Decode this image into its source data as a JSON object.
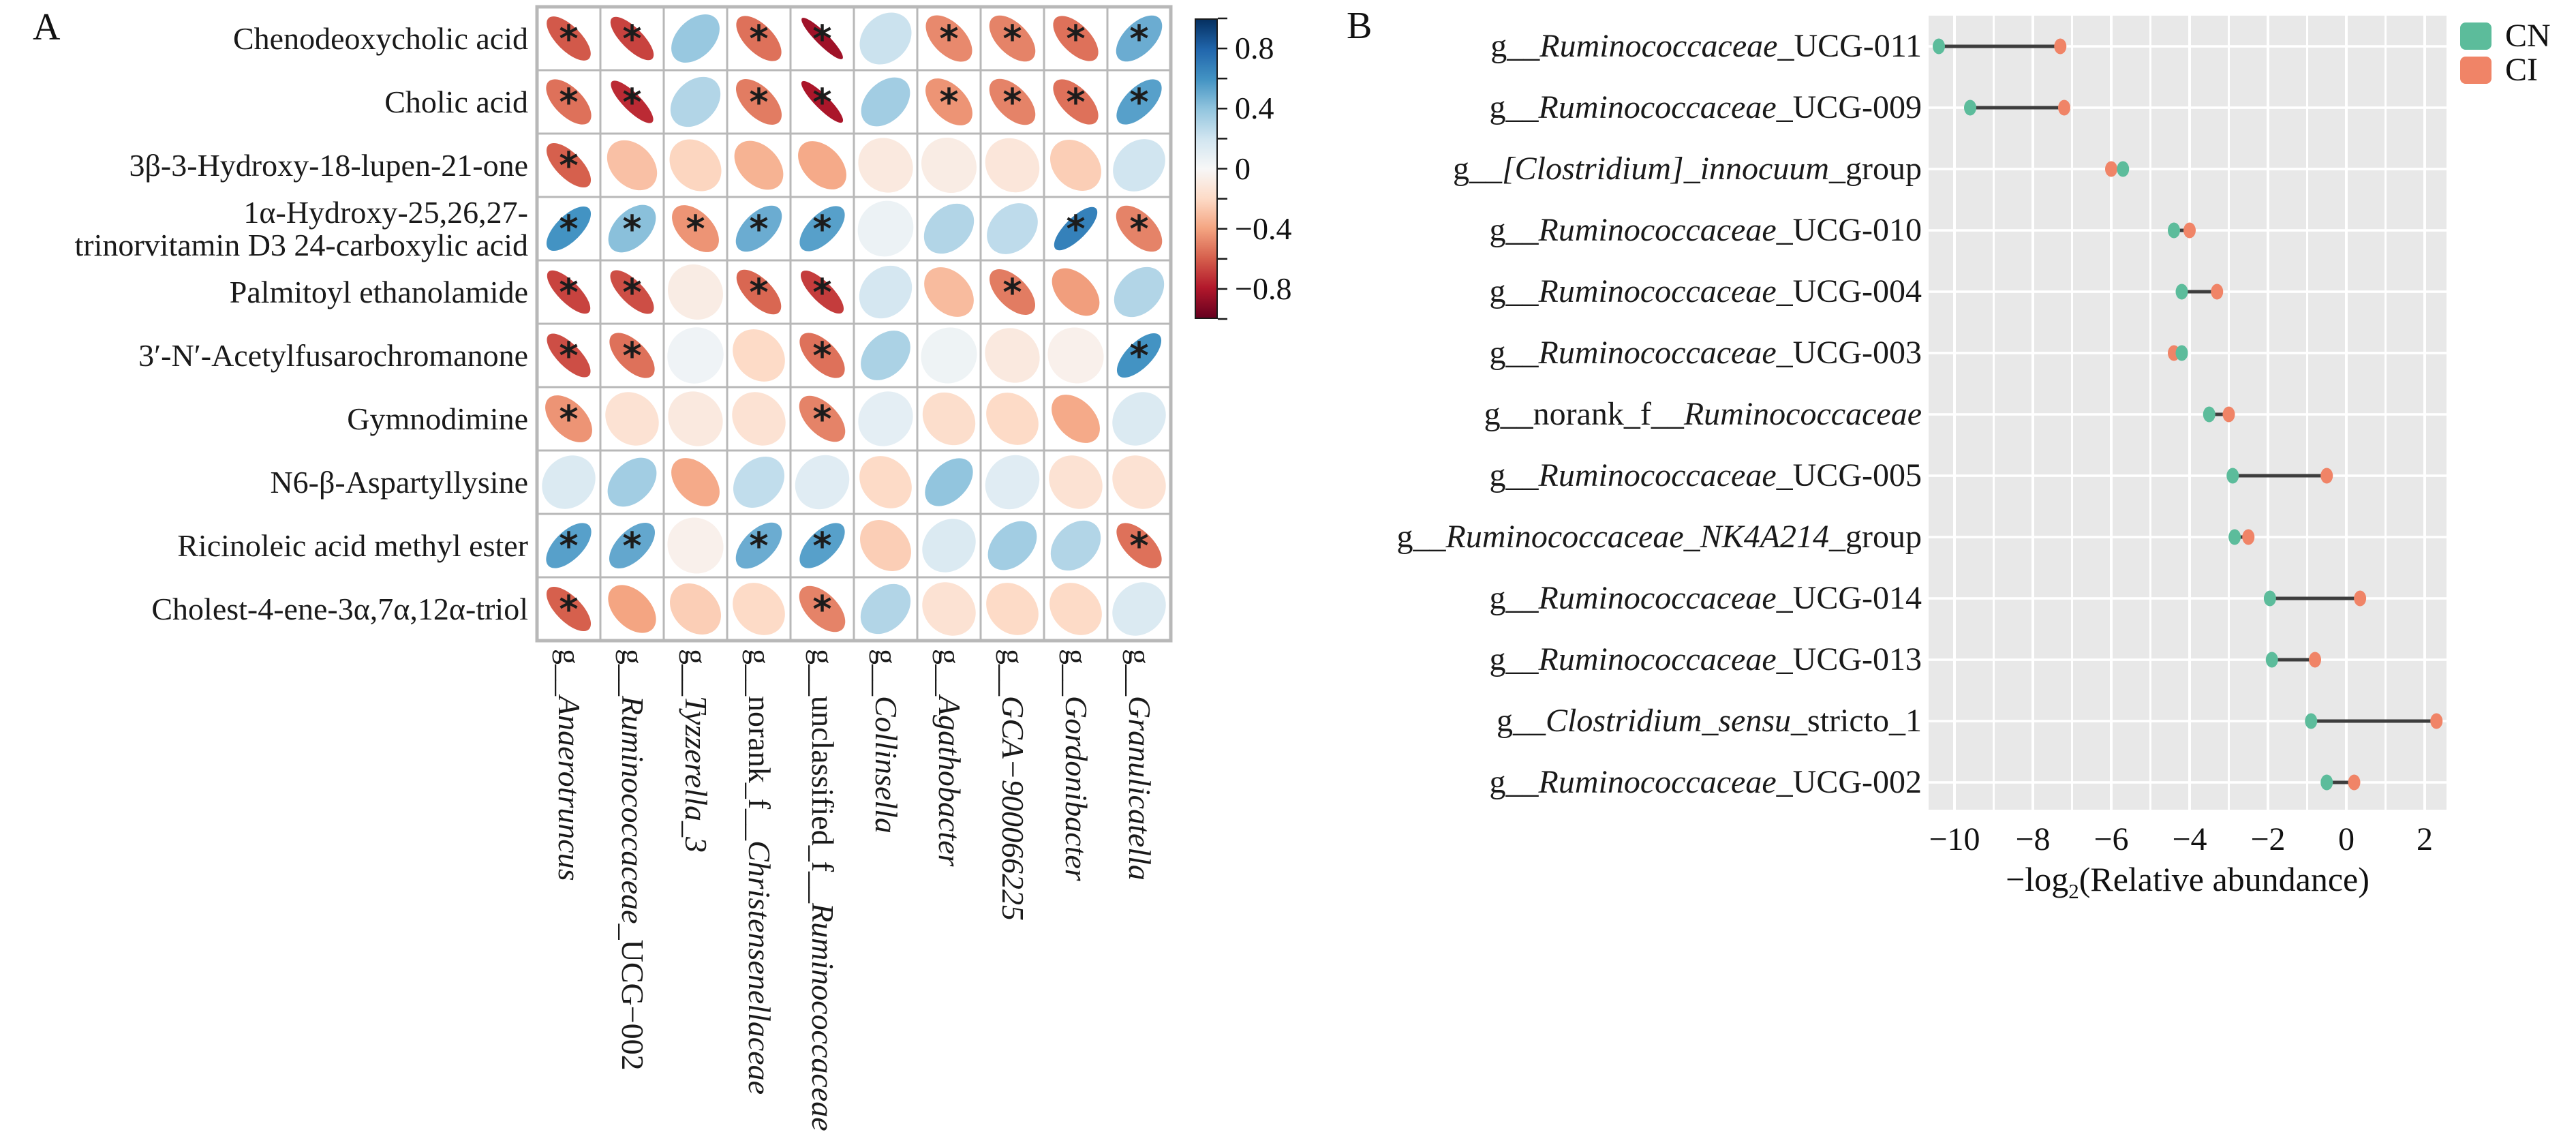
{
  "panel_a_label": "A",
  "panel_b_label": "B",
  "chart_data": [
    {
      "type": "heatmap",
      "variant": "correlation-ellipse-matrix",
      "panel": "A",
      "rows": [
        [
          "Chenodeoxycholic acid"
        ],
        [
          "Cholic acid"
        ],
        [
          "3β-3-Hydroxy-18-lupen-21-one"
        ],
        [
          "1α-Hydroxy-25,26,27-",
          "trinorvitamin D3 24-carboxylic acid"
        ],
        [
          "Palmitoyl ethanolamide"
        ],
        [
          "3′-N′-Acetylfusarochromanone"
        ],
        [
          "Gymnodimine"
        ],
        [
          "N6-β-Aspartyllysine"
        ],
        [
          "Ricinoleic acid methyl ester"
        ],
        [
          "Cholest-4-ene-3α,7α,12α-triol"
        ]
      ],
      "columns": [
        {
          "pre": "g__",
          "it": "Anaerotruncus",
          "post": ""
        },
        {
          "pre": "g__",
          "it": "Ruminococcaceae",
          "post": "_UCG−002"
        },
        {
          "pre": "g__",
          "it": "Tyzzerella_3",
          "post": ""
        },
        {
          "pre": "g__norank_f__",
          "it": "Christensenellaceae",
          "post": ""
        },
        {
          "pre": "g__unclassified_f__",
          "it": "Ruminococcaceae",
          "post": ""
        },
        {
          "pre": "g__",
          "it": "Collinsella",
          "post": ""
        },
        {
          "pre": "g__",
          "it": "Agathobacter",
          "post": ""
        },
        {
          "pre": "g__",
          "it": "GCA−900066225",
          "post": ""
        },
        {
          "pre": "g__",
          "it": "Gordonibacter",
          "post": ""
        },
        {
          "pre": "g__",
          "it": "Granulicatella",
          "post": ""
        }
      ],
      "values": [
        [
          -0.62,
          -0.68,
          0.38,
          -0.55,
          -0.85,
          0.22,
          -0.48,
          -0.5,
          -0.55,
          0.5
        ],
        [
          -0.55,
          -0.75,
          0.3,
          -0.52,
          -0.82,
          0.35,
          -0.45,
          -0.5,
          -0.55,
          0.55
        ],
        [
          -0.6,
          -0.3,
          -0.22,
          -0.35,
          -0.38,
          -0.1,
          -0.08,
          -0.12,
          -0.25,
          0.2
        ],
        [
          0.6,
          0.42,
          -0.45,
          0.5,
          0.55,
          0.06,
          0.3,
          0.26,
          0.68,
          -0.5
        ],
        [
          -0.68,
          -0.65,
          -0.08,
          -0.58,
          -0.7,
          0.18,
          -0.32,
          -0.52,
          -0.42,
          0.3
        ],
        [
          -0.65,
          -0.55,
          0.04,
          -0.2,
          -0.55,
          0.32,
          0.05,
          -0.1,
          -0.05,
          0.6
        ],
        [
          -0.45,
          -0.15,
          -0.1,
          -0.15,
          -0.5,
          0.1,
          -0.18,
          -0.2,
          -0.38,
          0.15
        ],
        [
          0.15,
          0.35,
          -0.38,
          0.25,
          0.12,
          -0.2,
          0.4,
          0.12,
          -0.15,
          -0.15
        ],
        [
          0.55,
          0.52,
          -0.05,
          0.5,
          0.55,
          -0.25,
          0.15,
          0.35,
          0.3,
          -0.55
        ],
        [
          -0.6,
          -0.4,
          -0.25,
          -0.2,
          -0.5,
          0.3,
          -0.15,
          -0.2,
          -0.2,
          0.15
        ]
      ],
      "significant": [
        [
          1,
          1,
          0,
          1,
          1,
          0,
          1,
          1,
          1,
          1
        ],
        [
          1,
          1,
          0,
          1,
          1,
          0,
          1,
          1,
          1,
          1
        ],
        [
          1,
          0,
          0,
          0,
          0,
          0,
          0,
          0,
          0,
          0
        ],
        [
          1,
          1,
          1,
          1,
          1,
          0,
          0,
          0,
          1,
          1
        ],
        [
          1,
          1,
          0,
          1,
          1,
          0,
          0,
          1,
          0,
          0
        ],
        [
          1,
          1,
          0,
          0,
          1,
          0,
          0,
          0,
          0,
          1
        ],
        [
          1,
          0,
          0,
          0,
          1,
          0,
          0,
          0,
          0,
          0
        ],
        [
          0,
          0,
          0,
          0,
          0,
          0,
          0,
          0,
          0,
          0
        ],
        [
          1,
          1,
          0,
          1,
          1,
          0,
          0,
          0,
          0,
          1
        ],
        [
          1,
          0,
          0,
          0,
          1,
          0,
          0,
          0,
          0,
          0
        ]
      ],
      "significance_marker": "*",
      "colorbar": {
        "ticks_labeled": [
          0.8,
          0.4,
          0,
          -0.4,
          -0.8
        ],
        "tick_step": 0.2,
        "range": [
          -1,
          1
        ]
      },
      "palette_rdbu": [
        "#67001F",
        "#B2182B",
        "#D6604D",
        "#F4A582",
        "#FDDBC7",
        "#F7F7F7",
        "#D1E5F0",
        "#92C5DE",
        "#4393C3",
        "#2166AC",
        "#053061"
      ],
      "grid_color": "#b8b8b8",
      "cell_background": "#ffffff"
    },
    {
      "type": "dumbbell",
      "panel": "B",
      "categories": [
        {
          "pre": "g__",
          "it": "Ruminococcaceae",
          "post": "_UCG-011"
        },
        {
          "pre": "g__",
          "it": "Ruminococcaceae",
          "post": "_UCG-009"
        },
        {
          "pre": "g__",
          "it": "[Clostridium]_innocuum",
          "post": "_group"
        },
        {
          "pre": "g__",
          "it": "Ruminococcaceae",
          "post": "_UCG-010"
        },
        {
          "pre": "g__",
          "it": "Ruminococcaceae",
          "post": "_UCG-004"
        },
        {
          "pre": "g__",
          "it": "Ruminococcaceae",
          "post": "_UCG-003"
        },
        {
          "pre": "g__norank_f__",
          "it": "Ruminococcaceae",
          "post": ""
        },
        {
          "pre": "g__",
          "it": "Ruminococcaceae",
          "post": "_UCG-005"
        },
        {
          "pre": "g__",
          "it": "Ruminococcaceae_NK4A214",
          "post": "_group"
        },
        {
          "pre": "g__",
          "it": "Ruminococcaceae",
          "post": "_UCG-014"
        },
        {
          "pre": "g__",
          "it": "Ruminococcaceae",
          "post": "_UCG-013"
        },
        {
          "pre": "g__",
          "it": "Clostridium_sensu",
          "post": "_stricto_1"
        },
        {
          "pre": "g__",
          "it": "Ruminococcaceae",
          "post": "_UCG-002"
        }
      ],
      "series": [
        {
          "name": "CN",
          "color": "#5cbc9b",
          "values": [
            -10.4,
            -9.6,
            -5.7,
            -4.4,
            -4.2,
            -4.2,
            -3.5,
            -2.9,
            -2.85,
            -1.95,
            -1.9,
            -0.9,
            -0.5
          ]
        },
        {
          "name": "CI",
          "color": "#f08467",
          "values": [
            -7.3,
            -7.2,
            -6.0,
            -4.0,
            -3.3,
            -4.4,
            -3.0,
            -0.5,
            -2.5,
            0.35,
            -0.8,
            2.3,
            0.2
          ]
        }
      ],
      "x_ticks": [
        -10,
        -8,
        -6,
        -4,
        -2,
        0,
        2
      ],
      "x_minor_step": 1,
      "x_range": [
        -10.65,
        2.55
      ],
      "xlabel": "−log2(Relative abundance)",
      "xlabel_pre": "−log",
      "xlabel_sub": "2",
      "xlabel_post": "(Relative abundance)",
      "legend_position": "top-right",
      "grid": true,
      "panel_background": "#e8e8e8",
      "connector_color": "#3d3d3d"
    }
  ]
}
